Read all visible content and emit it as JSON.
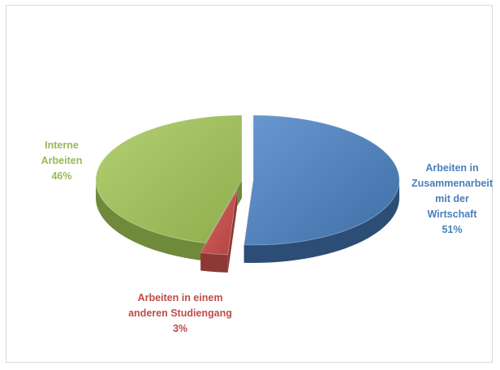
{
  "chart_data": {
    "type": "pie",
    "style": "3d-exploded",
    "title": "",
    "slices": [
      {
        "lines": [
          "Arbeiten in",
          "Zusammenarbeit",
          "mit der",
          "Wirtschaft"
        ],
        "percent_label": "51%",
        "value": 51,
        "top_color": "#4f81bd",
        "side_color": "#2c4d75"
      },
      {
        "lines": [
          "Arbeiten in einem",
          "anderen Studiengang"
        ],
        "percent_label": "3%",
        "value": 3,
        "top_color": "#c0504d",
        "side_color": "#8c3836"
      },
      {
        "lines": [
          "Interne",
          "Arbeiten"
        ],
        "percent_label": "46%",
        "value": 46,
        "top_color": "#9bbb59",
        "side_color": "#6f8a3a"
      }
    ],
    "label_colors": {
      "blue": "#4a7ebb",
      "red": "#be4b48",
      "green": "#98b954"
    }
  }
}
